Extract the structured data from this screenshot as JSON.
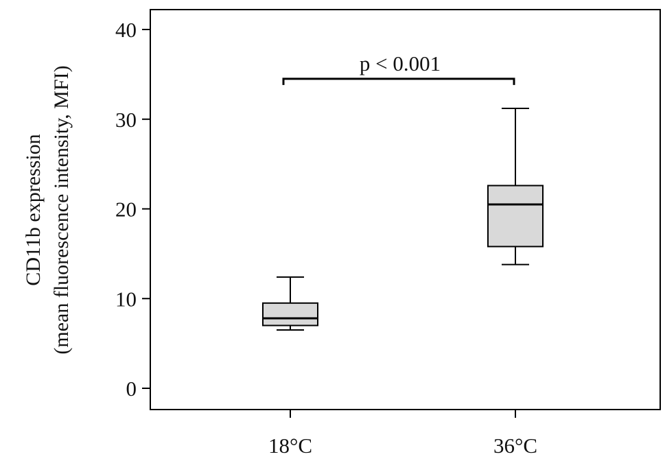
{
  "chart_data": {
    "type": "box",
    "title": "",
    "ylabel_line1": "CD11b expression",
    "ylabel_line2": "(mean fluorescence intensity, MFI)",
    "xlabel": "",
    "ylim": [
      0,
      40
    ],
    "yticks": [
      "0",
      "10",
      "20",
      "30",
      "40"
    ],
    "categories": [
      "18°C",
      "36°C"
    ],
    "boxes": [
      {
        "category": "18°C",
        "min": 6.5,
        "q1": 7.0,
        "median": 7.8,
        "q3": 9.5,
        "max": 12.4
      },
      {
        "category": "36°C",
        "min": 13.8,
        "q1": 15.8,
        "median": 20.5,
        "q3": 22.6,
        "max": 31.2
      }
    ],
    "annotation": {
      "text": "p < 0.001",
      "bracket_value": 34.5
    },
    "colors": {
      "box_fill": "#d9d9d9",
      "line": "#000000"
    },
    "grid": false
  }
}
